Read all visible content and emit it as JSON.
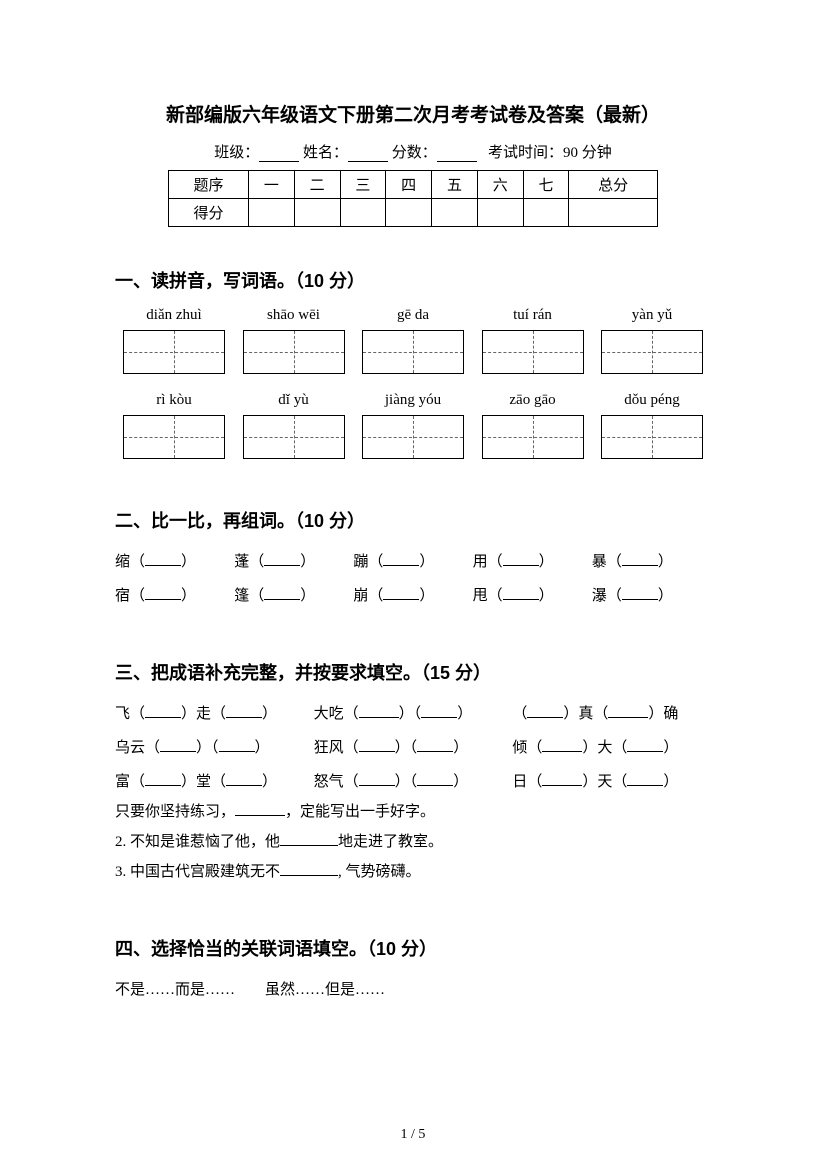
{
  "title": "新部编版六年级语文下册第二次月考考试卷及答案（最新）",
  "info": {
    "class_label": "班级：",
    "name_label": "姓名：",
    "score_label": "分数：",
    "time_label": "考试时间：90 分钟"
  },
  "score_table": {
    "row1": [
      "题序",
      "一",
      "二",
      "三",
      "四",
      "五",
      "六",
      "七",
      "总分"
    ],
    "row2_label": "得分"
  },
  "section1": {
    "heading": "一、读拼音，写词语。（10 分）",
    "pinyin_row1": [
      "diǎn zhuì",
      "shāo wēi",
      "gē da",
      "tuí rán",
      "yàn yǔ"
    ],
    "pinyin_row2": [
      "rì kòu",
      "dǐ yù",
      "jiàng yóu",
      "zāo gāo",
      "dǒu péng"
    ]
  },
  "section2": {
    "heading": "二、比一比，再组词。（10 分）",
    "pairs": [
      [
        "缩",
        "蓬",
        "蹦",
        "用",
        "暴"
      ],
      [
        "宿",
        "篷",
        "崩",
        "甩",
        "瀑"
      ]
    ]
  },
  "section3": {
    "heading": "三、把成语补充完整，并按要求填空。（15 分）",
    "idioms": [
      {
        "parts": [
          "飞（",
          "）走（",
          "）"
        ]
      },
      {
        "parts": [
          "大吃（",
          "）（",
          "）"
        ]
      },
      {
        "parts": [
          "（",
          "）真（",
          "）确"
        ]
      },
      {
        "parts": [
          "乌云（",
          "）（",
          "）"
        ]
      },
      {
        "parts": [
          "狂风（",
          "）（",
          "）"
        ]
      },
      {
        "parts": [
          "倾（",
          "）大（",
          "）"
        ]
      },
      {
        "parts": [
          "富（",
          "）堂（",
          "）"
        ]
      },
      {
        "parts": [
          "怒气（",
          "）（",
          "）"
        ]
      },
      {
        "parts": [
          "日（",
          "）天（",
          "）"
        ]
      }
    ],
    "fill1_a": "只要你坚持练习，",
    "fill1_b": "，定能写出一手好字。",
    "fill2_a": "2. 不知是谁惹恼了他，他",
    "fill2_b": "地走进了教室。",
    "fill3_a": "3. 中国古代宫殿建筑无不",
    "fill3_b": ", 气势磅礴。"
  },
  "section4": {
    "heading": "四、选择恰当的关联词语填空。（10 分）",
    "options": "不是……而是……　　虽然……但是……"
  },
  "page_num": "1 / 5"
}
